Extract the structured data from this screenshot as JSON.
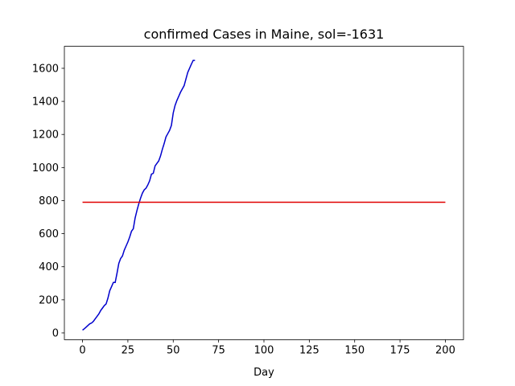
{
  "chart_data": {
    "type": "line",
    "title": "confirmed Cases in Maine, sol=-1631",
    "x_label": "Day",
    "xlim": [
      -10,
      210
    ],
    "ylim": [
      -41,
      1733
    ],
    "xticks": [
      0,
      25,
      50,
      75,
      100,
      125,
      150,
      175,
      200
    ],
    "yticks": [
      0,
      200,
      400,
      600,
      800,
      1000,
      1200,
      1400,
      1600
    ],
    "grid": false,
    "series": [
      {
        "color": "#0000cd",
        "x": [
          0,
          1,
          2,
          3,
          4,
          5,
          6,
          7,
          8,
          9,
          10,
          11,
          12,
          13,
          14,
          15,
          16,
          17,
          18,
          19,
          20,
          21,
          22,
          23,
          24,
          25,
          26,
          27,
          28,
          29,
          30,
          31,
          32,
          33,
          34,
          35,
          36,
          37,
          38,
          39,
          40,
          41,
          42,
          43,
          44,
          45,
          46,
          47,
          48,
          49,
          50,
          51,
          52,
          53,
          54,
          55,
          56,
          57,
          58,
          59,
          60,
          61,
          62
        ],
        "values": [
          17,
          25,
          35,
          45,
          55,
          60,
          70,
          85,
          100,
          115,
          135,
          150,
          165,
          175,
          210,
          255,
          280,
          305,
          305,
          360,
          420,
          450,
          465,
          500,
          525,
          550,
          580,
          615,
          630,
          695,
          740,
          780,
          815,
          845,
          865,
          875,
          895,
          920,
          960,
          965,
          1010,
          1025,
          1040,
          1070,
          1110,
          1145,
          1185,
          1205,
          1225,
          1255,
          1330,
          1375,
          1405,
          1430,
          1455,
          1475,
          1495,
          1535,
          1575,
          1600,
          1625,
          1648,
          1648
        ]
      },
      {
        "color": "#e00000",
        "x": [
          0,
          200
        ],
        "values": [
          790,
          790
        ]
      }
    ]
  }
}
